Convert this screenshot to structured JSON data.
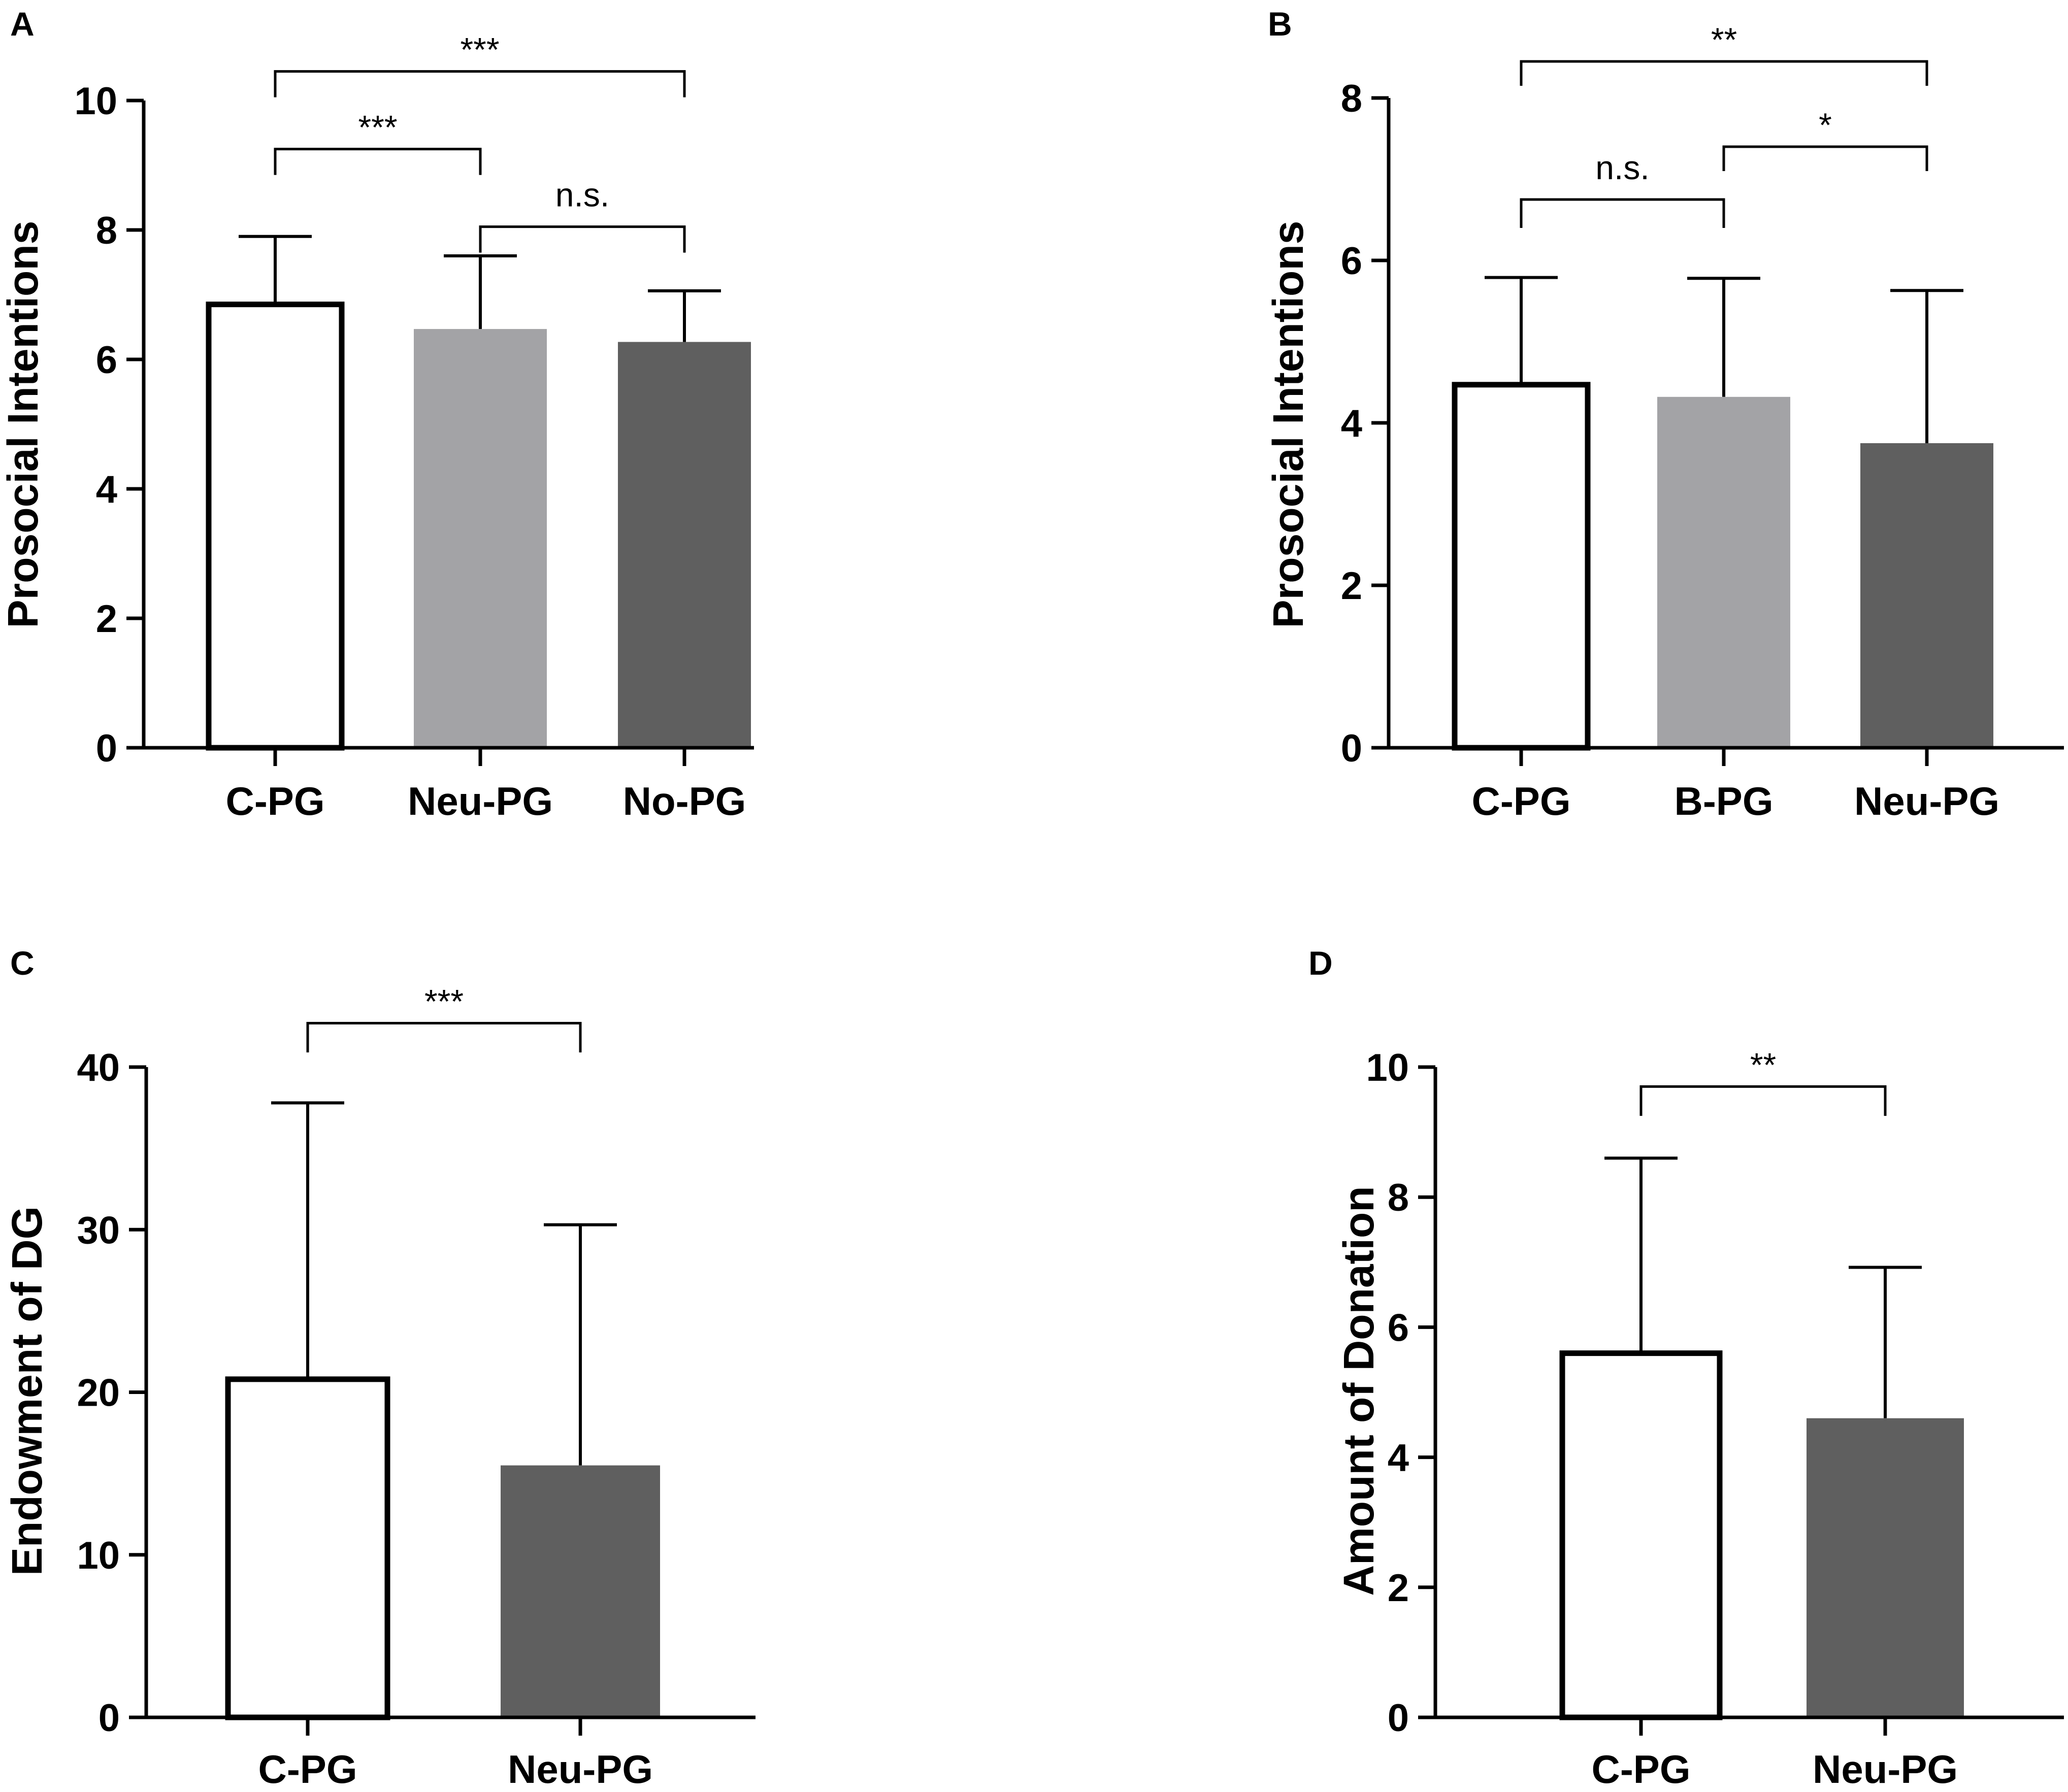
{
  "colors": {
    "white": "#ffffff",
    "light_gray": "#a3a3a6",
    "dark_gray": "#5f5f5f",
    "axis": "#000000"
  },
  "chart_data": [
    {
      "panel": "A",
      "type": "bar",
      "ylabel": "Prosocial Intentions",
      "ylim": [
        0,
        10
      ],
      "yticks": [
        0,
        2,
        4,
        6,
        8,
        10
      ],
      "categories": [
        "C-PG",
        "Neu-PG",
        "No-PG"
      ],
      "values": [
        6.85,
        6.47,
        6.27
      ],
      "errors": [
        1.05,
        1.13,
        0.79
      ],
      "fills": [
        "white",
        "light_gray",
        "dark_gray"
      ],
      "brackets": [
        {
          "from": 0,
          "to": 2,
          "label": "***",
          "y": 10.45,
          "drop_left": 0.4,
          "drop_right": 0.4
        },
        {
          "from": 0,
          "to": 1,
          "label": "***",
          "y": 9.25,
          "drop_left": 0.4,
          "drop_right": 0.4
        },
        {
          "from": 1,
          "to": 2,
          "label": "n.s.",
          "y": 8.05,
          "drop_left": 0.4,
          "drop_right": 0.4
        }
      ]
    },
    {
      "panel": "B",
      "type": "bar",
      "ylabel": "Prosocial Intentions",
      "ylim": [
        0,
        8
      ],
      "yticks": [
        0,
        2,
        4,
        6,
        8
      ],
      "categories": [
        "C-PG",
        "B-PG",
        "Neu-PG"
      ],
      "values": [
        4.47,
        4.32,
        3.75
      ],
      "errors": [
        1.32,
        1.46,
        1.88
      ],
      "fills": [
        "white",
        "light_gray",
        "dark_gray"
      ],
      "brackets": [
        {
          "from": 0,
          "to": 2,
          "label": "**",
          "y": 8.45,
          "drop_left": 0.3,
          "drop_right": 0.3
        },
        {
          "from": 1,
          "to": 2,
          "label": "*",
          "y": 7.4,
          "drop_left": 0.3,
          "drop_right": 0.3
        },
        {
          "from": 0,
          "to": 1,
          "label": "n.s.",
          "y": 6.75,
          "drop_left": 0.35,
          "drop_right": 0.35
        }
      ]
    },
    {
      "panel": "C",
      "type": "bar",
      "ylabel": "Endowment of DG",
      "ylim": [
        0,
        40
      ],
      "yticks": [
        0,
        10,
        20,
        30,
        40
      ],
      "categories": [
        "C-PG",
        "Neu-PG"
      ],
      "values": [
        20.8,
        15.5
      ],
      "errors": [
        17.0,
        14.8
      ],
      "fills": [
        "white",
        "dark_gray"
      ],
      "brackets": [
        {
          "from": 0,
          "to": 1,
          "label": "***",
          "y": 42.7,
          "drop_left": 1.8,
          "drop_right": 1.8
        }
      ]
    },
    {
      "panel": "D",
      "type": "bar",
      "ylabel": "Amount of Donation",
      "ylim": [
        0,
        10
      ],
      "yticks": [
        0,
        2,
        4,
        6,
        8,
        10
      ],
      "categories": [
        "C-PG",
        "Neu-PG"
      ],
      "values": [
        5.6,
        4.6
      ],
      "errors": [
        3.0,
        2.32
      ],
      "fills": [
        "white",
        "dark_gray"
      ],
      "brackets": [
        {
          "from": 0,
          "to": 1,
          "label": "**",
          "y": 9.7,
          "drop_left": 0.45,
          "drop_right": 0.45
        }
      ]
    }
  ]
}
